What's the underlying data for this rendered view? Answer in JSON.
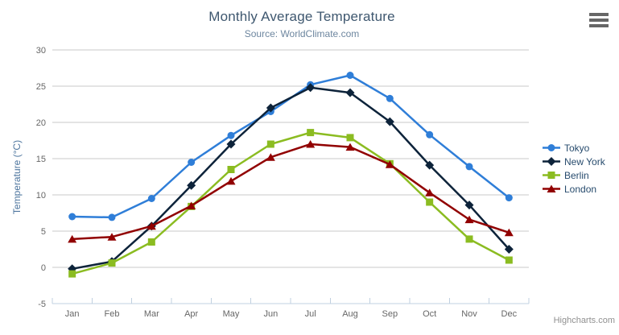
{
  "credits": "Highcharts.com",
  "export_menu": {
    "icon": "hamburger-icon",
    "tooltip": "Chart context menu"
  },
  "chart_data": {
    "type": "line",
    "title": "Monthly Average Temperature",
    "subtitle": "Source: WorldClimate.com",
    "xlabel": "",
    "ylabel": "Temperature (°C)",
    "categories": [
      "Jan",
      "Feb",
      "Mar",
      "Apr",
      "May",
      "Jun",
      "Jul",
      "Aug",
      "Sep",
      "Oct",
      "Nov",
      "Dec"
    ],
    "ylim": [
      -5,
      30
    ],
    "yticks": [
      -5,
      0,
      5,
      10,
      15,
      20,
      25,
      30
    ],
    "grid": true,
    "legend_position": "right",
    "axis_colors": {
      "grid_line": "#c8c8c8",
      "axis_line": "#c0d0e0",
      "tick_label": "#666666"
    },
    "series": [
      {
        "name": "Tokyo",
        "color": "#2f7ed8",
        "marker": "circle",
        "values": [
          7.0,
          6.9,
          9.5,
          14.5,
          18.2,
          21.5,
          25.2,
          26.5,
          23.3,
          18.3,
          13.9,
          9.6
        ]
      },
      {
        "name": "New York",
        "color": "#0d233a",
        "marker": "diamond",
        "values": [
          -0.2,
          0.8,
          5.7,
          11.3,
          17.0,
          22.0,
          24.8,
          24.1,
          20.1,
          14.1,
          8.6,
          2.5
        ]
      },
      {
        "name": "Berlin",
        "color": "#8bbc21",
        "marker": "square",
        "values": [
          -0.9,
          0.6,
          3.5,
          8.4,
          13.5,
          17.0,
          18.6,
          17.9,
          14.3,
          9.0,
          3.9,
          1.0
        ]
      },
      {
        "name": "London",
        "color": "#910000",
        "marker": "triangle",
        "values": [
          3.9,
          4.2,
          5.7,
          8.5,
          11.9,
          15.2,
          17.0,
          16.6,
          14.2,
          10.3,
          6.6,
          4.8
        ]
      }
    ]
  }
}
